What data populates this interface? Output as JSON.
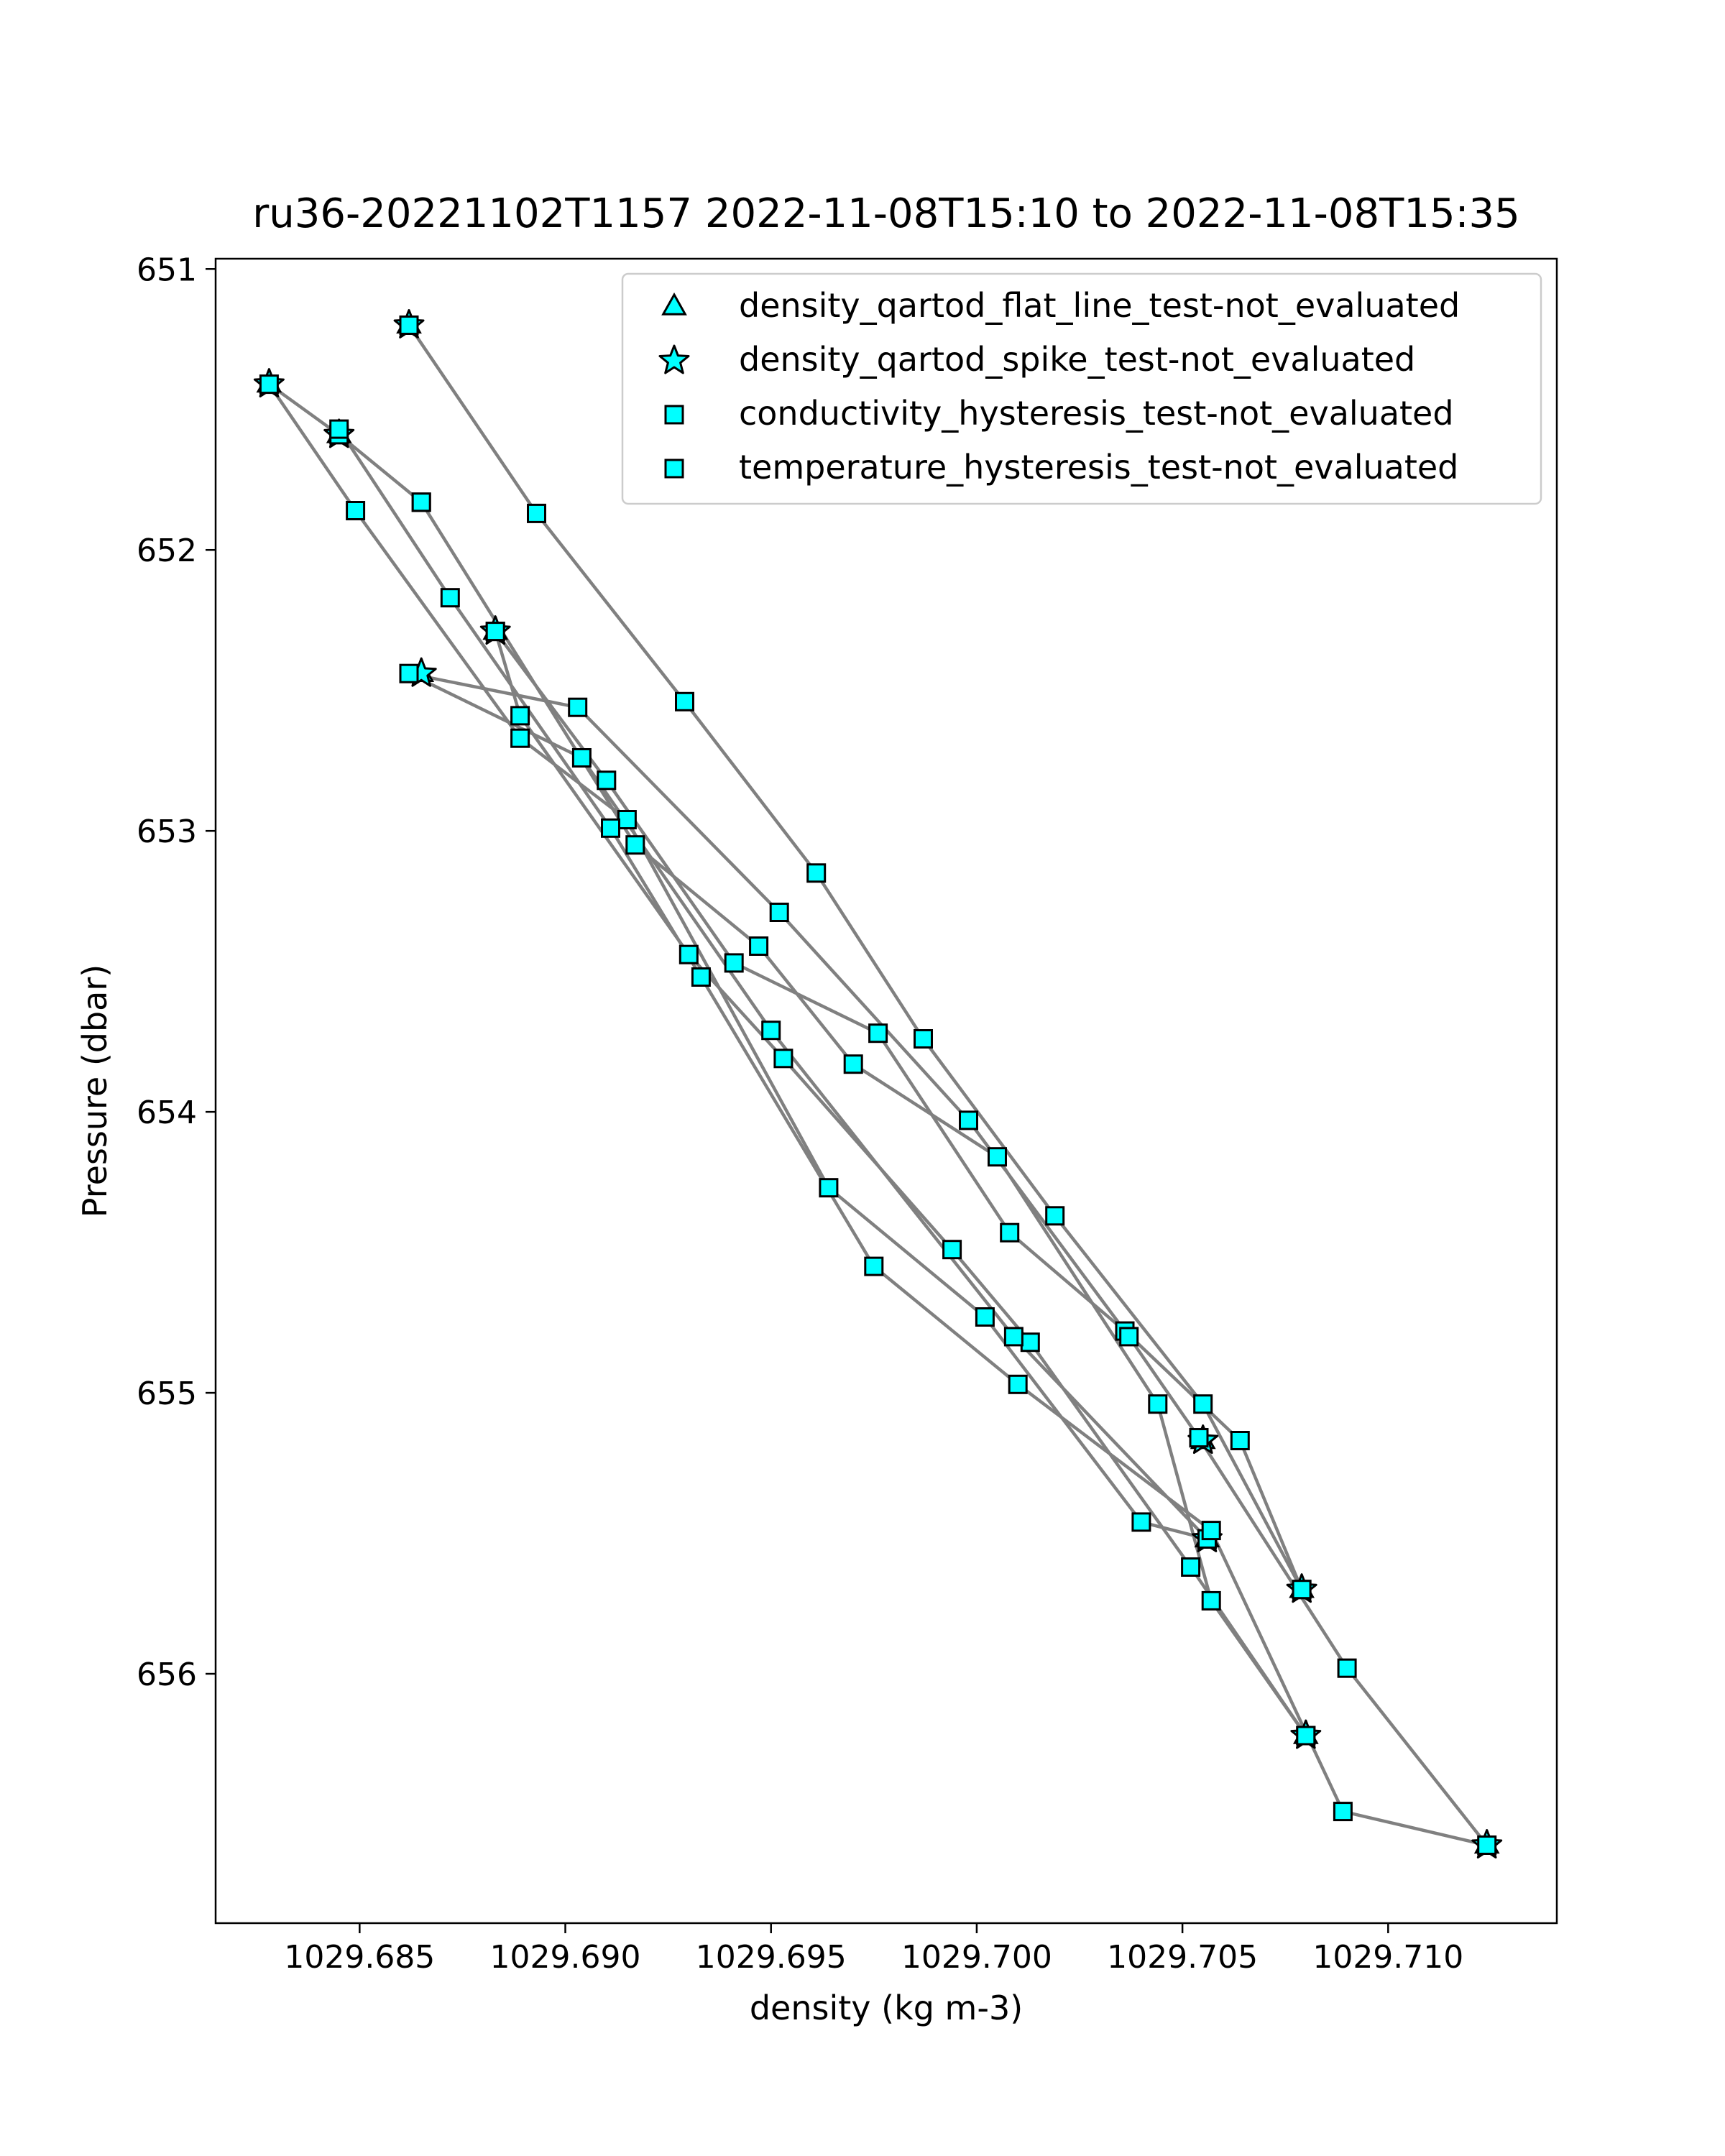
{
  "chart_data": {
    "type": "scatter",
    "title": "ru36-20221102T1157 2022-11-08T15:10 to 2022-11-08T15:35",
    "xlabel": "density (kg m-3)",
    "ylabel": "Pressure (dbar)",
    "xlim": [
      1029.6815,
      1029.7141
    ],
    "ylim": [
      656.8875,
      650.9635
    ],
    "y_inverted": true,
    "grid": false,
    "legend_position": "top-right",
    "x_ticks": [
      "1029.685",
      "1029.690",
      "1029.695",
      "1029.700",
      "1029.705",
      "1029.710"
    ],
    "x_tick_values": [
      1029.685,
      1029.69,
      1029.695,
      1029.7,
      1029.705,
      1029.71
    ],
    "y_ticks": [
      "651",
      "652",
      "653",
      "654",
      "655",
      "656"
    ],
    "y_tick_values": [
      651,
      652,
      653,
      654,
      655,
      656
    ],
    "line_color": "#808080",
    "marker_color": "#00ffff",
    "marker_edge": "#000000",
    "legend": [
      {
        "label": "density_qartod_flat_line_test-not_evaluated",
        "marker": "triangle"
      },
      {
        "label": "density_qartod_spike_test-not_evaluated",
        "marker": "star"
      },
      {
        "label": "conductivity_hysteresis_test-not_evaluated",
        "marker": "square"
      },
      {
        "label": "temperature_hysteresis_test-not_evaluated",
        "marker": "square"
      }
    ],
    "profiles": [
      {
        "x": [
          1029.6862,
          1029.6893,
          1029.6929,
          1029.6961,
          1029.6987,
          1029.7019,
          1029.7055,
          1029.7079
        ],
        "y": [
          651.2,
          651.87,
          652.54,
          653.15,
          653.74,
          654.37,
          655.04,
          655.7
        ]
      },
      {
        "x": [
          1029.7079,
          1029.7064,
          1029.7036,
          1029.7008,
          1029.6976,
          1029.6941,
          1029.691,
          1029.6883
        ],
        "y": [
          655.7,
          655.17,
          654.78,
          654.43,
          653.72,
          653.47,
          652.82,
          652.29
        ]
      },
      {
        "x": [
          1029.6883,
          1029.6889,
          1029.693,
          1029.6953,
          1029.6994,
          1029.7013,
          1029.7052,
          1029.708
        ],
        "y": [
          652.29,
          652.59,
          653.44,
          653.81,
          654.49,
          654.82,
          655.62,
          656.22
        ]
      },
      {
        "x": [
          1029.708,
          1029.7057,
          1029.7044,
          1029.7005,
          1029.697,
          1029.6947,
          1029.6917,
          1029.6865
        ],
        "y": [
          656.22,
          655.74,
          655.04,
          654.16,
          653.83,
          653.41,
          653.05,
          651.83
        ]
      },
      {
        "x": [
          1029.6865,
          1029.6845,
          1029.6828,
          1029.6849,
          1029.6889,
          1029.6915,
          1029.6964,
          1029.7002,
          1029.704,
          1029.7056
        ],
        "y": [
          651.83,
          651.59,
          651.41,
          651.86,
          652.67,
          652.96,
          654.27,
          654.73,
          655.46,
          655.52
        ]
      },
      {
        "x": [
          1029.7056,
          1029.7009,
          1029.695,
          1029.6904,
          1029.6862,
          1029.6903,
          1029.6952,
          1029.6998,
          1029.7037,
          1029.7054
        ],
        "y": [
          655.52,
          654.8,
          653.71,
          652.74,
          652.44,
          652.56,
          653.29,
          654.03,
          654.8,
          655.16
        ]
      },
      {
        "x": [
          1029.7054,
          1029.709,
          1029.7124,
          1029.7089,
          1029.7057,
          1029.701,
          1029.6975,
          1029.6933,
          1029.6911,
          1029.6872,
          1029.6845
        ],
        "y": [
          655.16,
          655.98,
          656.61,
          656.49,
          655.49,
          654.97,
          654.55,
          653.52,
          652.99,
          652.17,
          651.57
        ]
      }
    ],
    "star_points": {
      "x": [
        1029.6862,
        1029.6828,
        1029.6845,
        1029.6883,
        1029.6865,
        1029.7055,
        1029.7056,
        1029.7079,
        1029.708,
        1029.7124
      ],
      "y": [
        651.2,
        651.41,
        651.59,
        652.29,
        652.44,
        655.17,
        655.52,
        655.7,
        656.22,
        656.61
      ]
    }
  }
}
